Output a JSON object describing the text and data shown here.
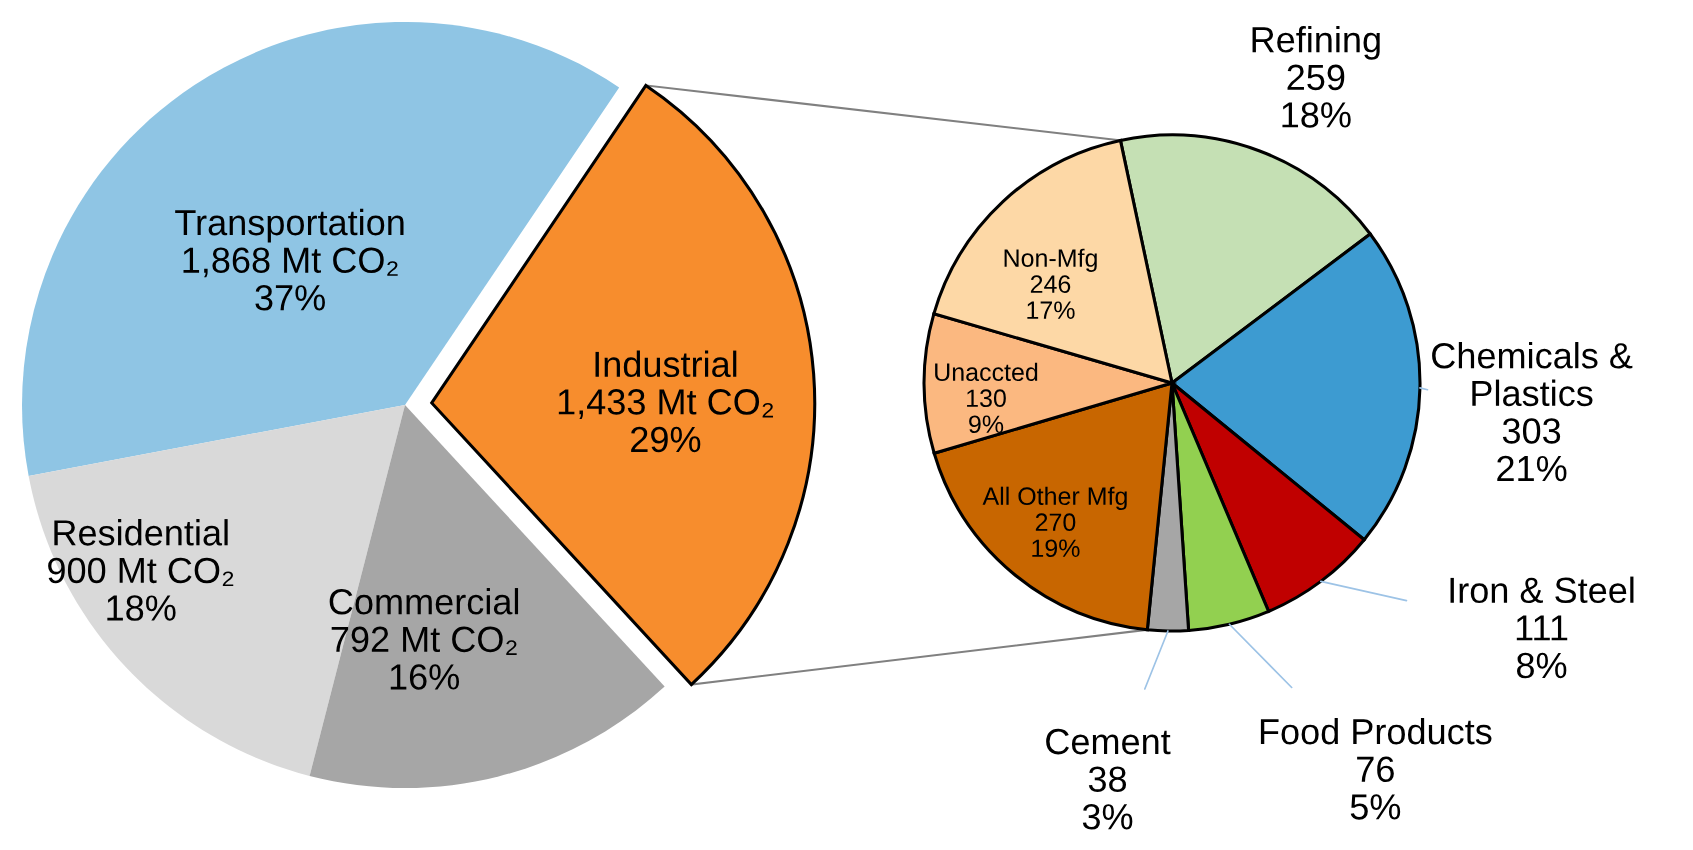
{
  "chart_data": [
    {
      "type": "pie",
      "categories": [
        "Transportation",
        "Residential",
        "Commercial",
        "Industrial"
      ],
      "values": [
        1868,
        900,
        792,
        1433
      ],
      "colors": [
        "#8fc5e4",
        "#d9d9d9",
        "#a6a6a6",
        "#f78d2d"
      ],
      "value_labels": [
        "1,868 Mt CO₂\n37%",
        "900 Mt CO₂\n18%",
        "792 Mt CO₂\n16%",
        "1,433 Mt CO₂\n29%"
      ]
    },
    {
      "type": "pie",
      "categories": [
        "Refining",
        "Chemicals &\nPlastics",
        "Iron & Steel",
        "Food Products",
        "Cement",
        "All Other Mfg",
        "Unaccted",
        "Non-Mfg"
      ],
      "values": [
        259,
        303,
        111,
        76,
        38,
        270,
        130,
        246
      ],
      "colors": [
        "#c5e0b4",
        "#3d9bd1",
        "#c00000",
        "#92d050",
        "#a6a6a6",
        "#c86600",
        "#fbb880",
        "#fdd8a6"
      ],
      "value_labels": [
        "259\n18%",
        "303\n21%",
        "111\n8%",
        "76\n5%",
        "38\n3%",
        "270\n19%",
        "130\n9%",
        "246\n17%"
      ]
    }
  ]
}
